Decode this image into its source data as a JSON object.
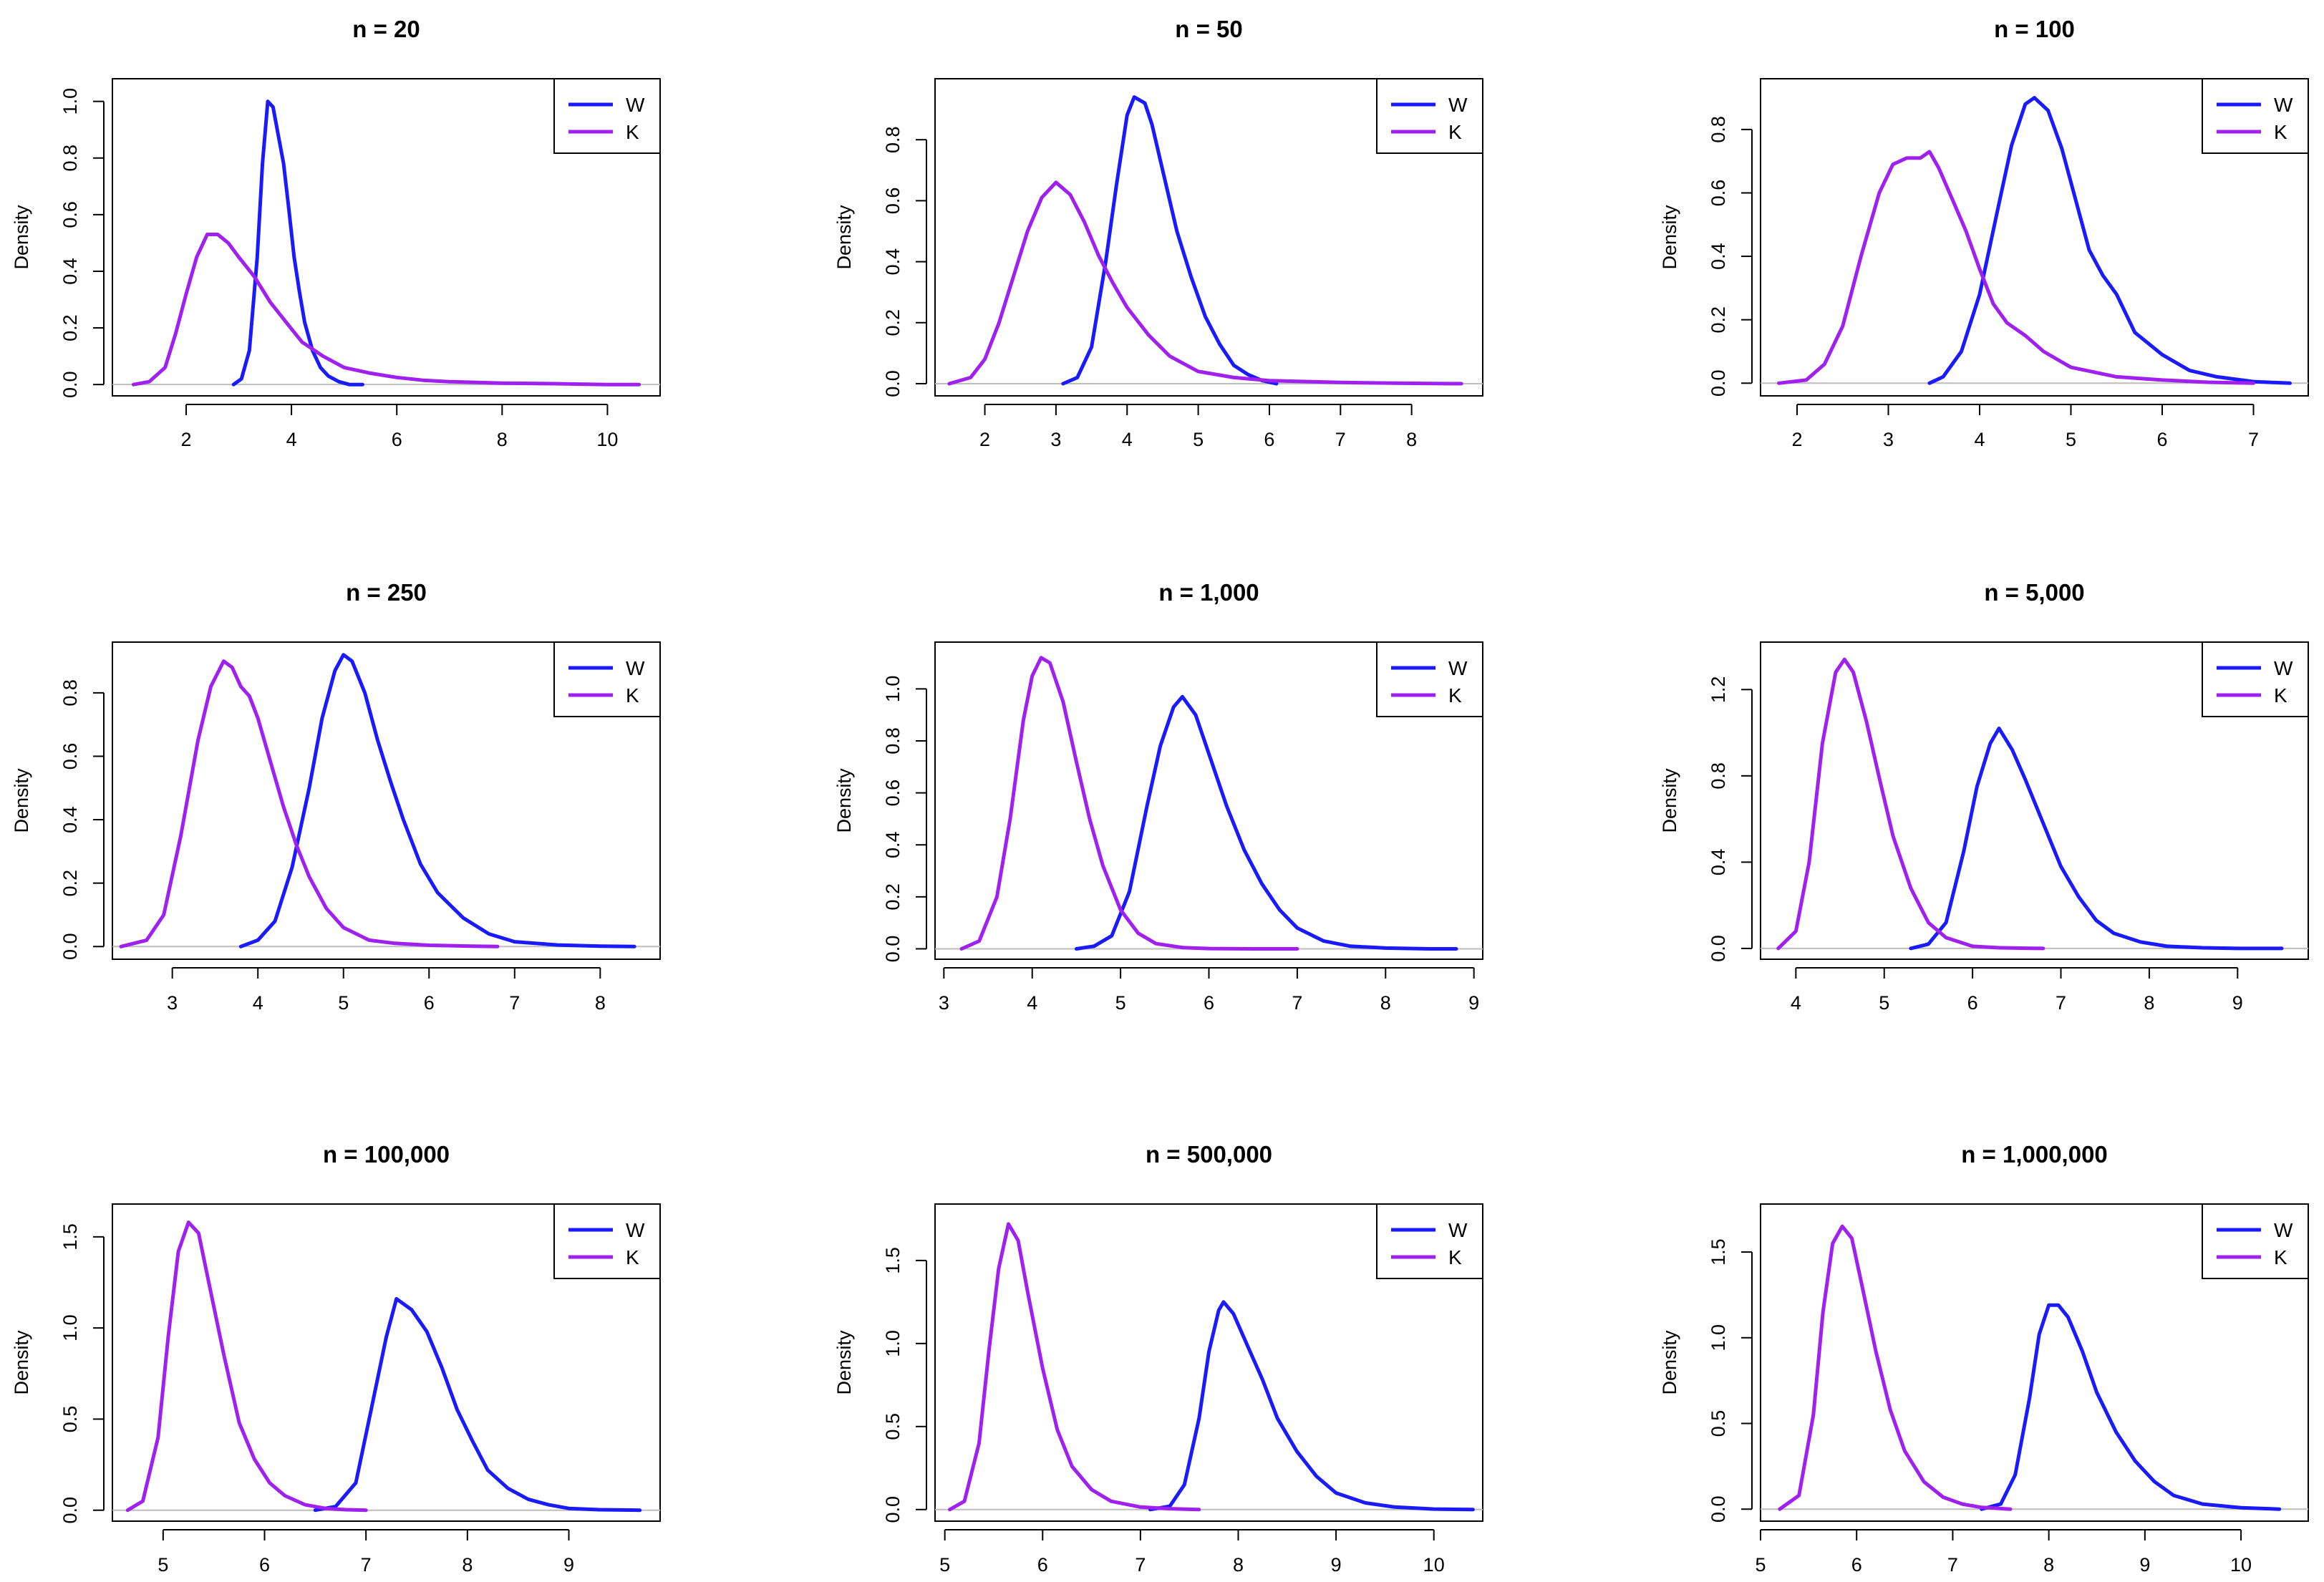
{
  "chart_data": [
    {
      "type": "line",
      "title": "n = 20",
      "xlabel": "",
      "ylabel": "Density",
      "xlim": [
        0.6,
        11.0
      ],
      "ylim": [
        -0.04,
        1.08
      ],
      "xticks": [
        2,
        4,
        6,
        8,
        10
      ],
      "yticks": [
        "0.0",
        "0.2",
        "0.4",
        "0.6",
        "0.8",
        "1.0"
      ],
      "legend": {
        "position": "top-right",
        "entries": [
          "W",
          "K"
        ]
      },
      "series": [
        {
          "name": "W",
          "color": "#1a1aff",
          "x": [
            2.9,
            3.05,
            3.2,
            3.35,
            3.45,
            3.55,
            3.65,
            3.75,
            3.85,
            3.95,
            4.05,
            4.15,
            4.25,
            4.4,
            4.55,
            4.7,
            4.9,
            5.1,
            5.35
          ],
          "y": [
            0.0,
            0.02,
            0.12,
            0.45,
            0.78,
            1.0,
            0.98,
            0.88,
            0.78,
            0.62,
            0.45,
            0.33,
            0.22,
            0.12,
            0.06,
            0.03,
            0.01,
            0.0,
            0.0
          ]
        },
        {
          "name": "K",
          "color": "#a020f0",
          "x": [
            1.0,
            1.3,
            1.6,
            1.8,
            2.0,
            2.2,
            2.4,
            2.6,
            2.8,
            3.0,
            3.3,
            3.6,
            3.9,
            4.2,
            4.6,
            5.0,
            5.5,
            6.0,
            6.5,
            7.0,
            8.0,
            9.0,
            10.0,
            10.6
          ],
          "y": [
            0.0,
            0.01,
            0.06,
            0.18,
            0.32,
            0.45,
            0.53,
            0.53,
            0.5,
            0.45,
            0.38,
            0.29,
            0.22,
            0.15,
            0.1,
            0.06,
            0.04,
            0.025,
            0.015,
            0.01,
            0.005,
            0.003,
            0.0,
            0.0
          ]
        }
      ]
    },
    {
      "type": "line",
      "title": "n = 50",
      "xlabel": "",
      "ylabel": "Density",
      "xlim": [
        1.3,
        9.0
      ],
      "ylim": [
        -0.04,
        1.0
      ],
      "xticks": [
        2,
        3,
        4,
        5,
        6,
        7,
        8
      ],
      "yticks": [
        "0.0",
        "0.2",
        "0.4",
        "0.6",
        "0.8"
      ],
      "legend": {
        "position": "top-right",
        "entries": [
          "W",
          "K"
        ]
      },
      "series": [
        {
          "name": "W",
          "color": "#1a1aff",
          "x": [
            3.1,
            3.3,
            3.5,
            3.7,
            3.85,
            4.0,
            4.1,
            4.25,
            4.35,
            4.5,
            4.7,
            4.9,
            5.1,
            5.3,
            5.5,
            5.7,
            5.9,
            6.1
          ],
          "y": [
            0.0,
            0.02,
            0.12,
            0.4,
            0.65,
            0.88,
            0.94,
            0.92,
            0.85,
            0.7,
            0.5,
            0.35,
            0.22,
            0.13,
            0.06,
            0.03,
            0.01,
            0.0
          ]
        },
        {
          "name": "K",
          "color": "#a020f0",
          "x": [
            1.5,
            1.8,
            2.0,
            2.2,
            2.4,
            2.6,
            2.8,
            3.0,
            3.2,
            3.4,
            3.6,
            3.8,
            4.0,
            4.3,
            4.6,
            5.0,
            5.5,
            6.0,
            7.0,
            8.0,
            8.7
          ],
          "y": [
            0.0,
            0.02,
            0.08,
            0.2,
            0.35,
            0.5,
            0.61,
            0.66,
            0.62,
            0.53,
            0.42,
            0.33,
            0.25,
            0.16,
            0.09,
            0.04,
            0.02,
            0.01,
            0.004,
            0.001,
            0.0
          ]
        }
      ]
    },
    {
      "type": "line",
      "title": "n = 100",
      "xlabel": "",
      "ylabel": "Density",
      "xlim": [
        1.6,
        7.6
      ],
      "ylim": [
        -0.04,
        0.96
      ],
      "xticks": [
        2,
        3,
        4,
        5,
        6,
        7
      ],
      "yticks": [
        "0.0",
        "0.2",
        "0.4",
        "0.6",
        "0.8"
      ],
      "legend": {
        "position": "top-right",
        "entries": [
          "W",
          "K"
        ]
      },
      "series": [
        {
          "name": "W",
          "color": "#1a1aff",
          "x": [
            3.45,
            3.6,
            3.8,
            4.0,
            4.2,
            4.35,
            4.5,
            4.6,
            4.75,
            4.9,
            5.05,
            5.2,
            5.35,
            5.5,
            5.7,
            6.0,
            6.3,
            6.6,
            7.0,
            7.4
          ],
          "y": [
            0.0,
            0.02,
            0.1,
            0.28,
            0.55,
            0.75,
            0.88,
            0.9,
            0.86,
            0.74,
            0.58,
            0.42,
            0.34,
            0.28,
            0.16,
            0.09,
            0.04,
            0.02,
            0.005,
            0.0
          ]
        },
        {
          "name": "K",
          "color": "#a020f0",
          "x": [
            1.8,
            2.1,
            2.3,
            2.5,
            2.7,
            2.9,
            3.05,
            3.2,
            3.35,
            3.45,
            3.55,
            3.7,
            3.85,
            4.0,
            4.15,
            4.3,
            4.5,
            4.7,
            5.0,
            5.5,
            6.0,
            6.5,
            7.0
          ],
          "y": [
            0.0,
            0.01,
            0.06,
            0.18,
            0.4,
            0.6,
            0.69,
            0.71,
            0.71,
            0.73,
            0.68,
            0.58,
            0.48,
            0.36,
            0.25,
            0.19,
            0.15,
            0.1,
            0.05,
            0.02,
            0.01,
            0.003,
            0.0
          ]
        }
      ]
    },
    {
      "type": "line",
      "title": "n = 250",
      "xlabel": "",
      "ylabel": "Density",
      "xlim": [
        2.3,
        8.7
      ],
      "ylim": [
        -0.04,
        0.96
      ],
      "xticks": [
        3,
        4,
        5,
        6,
        7,
        8
      ],
      "yticks": [
        "0.0",
        "0.2",
        "0.4",
        "0.6",
        "0.8"
      ],
      "legend": {
        "position": "top-right",
        "entries": [
          "W",
          "K"
        ]
      },
      "series": [
        {
          "name": "W",
          "color": "#1a1aff",
          "x": [
            3.8,
            4.0,
            4.2,
            4.4,
            4.6,
            4.75,
            4.9,
            5.0,
            5.1,
            5.25,
            5.4,
            5.55,
            5.7,
            5.9,
            6.1,
            6.4,
            6.7,
            7.0,
            7.5,
            8.0,
            8.4
          ],
          "y": [
            0.0,
            0.02,
            0.08,
            0.25,
            0.5,
            0.72,
            0.87,
            0.92,
            0.9,
            0.8,
            0.65,
            0.52,
            0.4,
            0.26,
            0.17,
            0.09,
            0.04,
            0.015,
            0.005,
            0.001,
            0.0
          ]
        },
        {
          "name": "K",
          "color": "#a020f0",
          "x": [
            2.4,
            2.7,
            2.9,
            3.1,
            3.3,
            3.45,
            3.6,
            3.7,
            3.8,
            3.9,
            4.0,
            4.15,
            4.3,
            4.45,
            4.6,
            4.8,
            5.0,
            5.3,
            5.6,
            6.0,
            6.5,
            6.8
          ],
          "y": [
            0.0,
            0.02,
            0.1,
            0.35,
            0.65,
            0.82,
            0.9,
            0.88,
            0.82,
            0.79,
            0.72,
            0.58,
            0.44,
            0.32,
            0.22,
            0.12,
            0.06,
            0.02,
            0.01,
            0.004,
            0.001,
            0.0
          ]
        }
      ]
    },
    {
      "type": "line",
      "title": "n = 1,000",
      "xlabel": "",
      "ylabel": "Density",
      "xlim": [
        2.9,
        9.1
      ],
      "ylim": [
        -0.04,
        1.18
      ],
      "xticks": [
        3,
        4,
        5,
        6,
        7,
        8,
        9
      ],
      "yticks": [
        "0.0",
        "0.2",
        "0.4",
        "0.6",
        "0.8",
        "1.0"
      ],
      "legend": {
        "position": "top-right",
        "entries": [
          "W",
          "K"
        ]
      },
      "series": [
        {
          "name": "W",
          "color": "#1a1aff",
          "x": [
            4.5,
            4.7,
            4.9,
            5.1,
            5.3,
            5.45,
            5.6,
            5.7,
            5.85,
            6.0,
            6.2,
            6.4,
            6.6,
            6.8,
            7.0,
            7.3,
            7.6,
            8.0,
            8.5,
            8.8
          ],
          "y": [
            0.0,
            0.01,
            0.05,
            0.22,
            0.55,
            0.78,
            0.93,
            0.97,
            0.9,
            0.75,
            0.55,
            0.38,
            0.25,
            0.15,
            0.08,
            0.03,
            0.01,
            0.003,
            0.0,
            0.0
          ]
        },
        {
          "name": "K",
          "color": "#a020f0",
          "x": [
            3.2,
            3.4,
            3.6,
            3.75,
            3.9,
            4.0,
            4.1,
            4.2,
            4.35,
            4.5,
            4.65,
            4.8,
            5.0,
            5.2,
            5.4,
            5.7,
            6.0,
            6.5,
            7.0
          ],
          "y": [
            0.0,
            0.03,
            0.2,
            0.5,
            0.88,
            1.05,
            1.12,
            1.1,
            0.95,
            0.72,
            0.5,
            0.32,
            0.15,
            0.06,
            0.02,
            0.005,
            0.001,
            0.0,
            0.0
          ]
        }
      ]
    },
    {
      "type": "line",
      "title": "n = 5,000",
      "xlabel": "",
      "ylabel": "Density",
      "xlim": [
        3.6,
        9.8
      ],
      "ylim": [
        -0.05,
        1.42
      ],
      "xticks": [
        4,
        5,
        6,
        7,
        8,
        9
      ],
      "yticks": [
        "0.0",
        "0.4",
        "0.8",
        "1.2"
      ],
      "legend": {
        "position": "top-right",
        "entries": [
          "W",
          "K"
        ]
      },
      "series": [
        {
          "name": "W",
          "color": "#1a1aff",
          "x": [
            5.3,
            5.5,
            5.7,
            5.9,
            6.05,
            6.2,
            6.3,
            6.45,
            6.6,
            6.8,
            7.0,
            7.2,
            7.4,
            7.6,
            7.9,
            8.2,
            8.6,
            9.0,
            9.5
          ],
          "y": [
            0.0,
            0.02,
            0.12,
            0.45,
            0.75,
            0.95,
            1.02,
            0.92,
            0.78,
            0.58,
            0.38,
            0.24,
            0.13,
            0.07,
            0.03,
            0.01,
            0.003,
            0.0,
            0.0
          ]
        },
        {
          "name": "K",
          "color": "#a020f0",
          "x": [
            3.8,
            4.0,
            4.15,
            4.3,
            4.45,
            4.55,
            4.65,
            4.8,
            4.95,
            5.1,
            5.3,
            5.5,
            5.7,
            6.0,
            6.3,
            6.6,
            6.8
          ],
          "y": [
            0.0,
            0.08,
            0.4,
            0.95,
            1.28,
            1.34,
            1.28,
            1.05,
            0.78,
            0.52,
            0.28,
            0.12,
            0.05,
            0.01,
            0.003,
            0.001,
            0.0
          ]
        }
      ]
    },
    {
      "type": "line",
      "title": "n = 100,000",
      "xlabel": "",
      "ylabel": "Density",
      "xlim": [
        4.5,
        9.9
      ],
      "ylim": [
        -0.06,
        1.68
      ],
      "xticks": [
        5,
        6,
        7,
        8,
        9
      ],
      "yticks": [
        "0.0",
        "0.5",
        "1.0",
        "1.5"
      ],
      "legend": {
        "position": "top-right",
        "entries": [
          "W",
          "K"
        ]
      },
      "series": [
        {
          "name": "W",
          "color": "#1a1aff",
          "x": [
            6.5,
            6.7,
            6.9,
            7.05,
            7.2,
            7.3,
            7.45,
            7.6,
            7.75,
            7.9,
            8.05,
            8.2,
            8.4,
            8.6,
            8.8,
            9.0,
            9.3,
            9.7
          ],
          "y": [
            0.0,
            0.02,
            0.15,
            0.55,
            0.95,
            1.16,
            1.1,
            0.98,
            0.78,
            0.55,
            0.38,
            0.22,
            0.12,
            0.06,
            0.03,
            0.01,
            0.003,
            0.0
          ]
        },
        {
          "name": "K",
          "color": "#a020f0",
          "x": [
            4.65,
            4.8,
            4.95,
            5.05,
            5.15,
            5.25,
            5.35,
            5.45,
            5.6,
            5.75,
            5.9,
            6.05,
            6.2,
            6.4,
            6.6,
            6.8,
            7.0
          ],
          "y": [
            0.0,
            0.05,
            0.4,
            0.95,
            1.42,
            1.58,
            1.52,
            1.25,
            0.85,
            0.48,
            0.28,
            0.15,
            0.08,
            0.03,
            0.01,
            0.003,
            0.0
          ]
        }
      ]
    },
    {
      "type": "line",
      "title": "n = 500,000",
      "xlabel": "",
      "ylabel": "Density",
      "xlim": [
        4.9,
        10.5
      ],
      "ylim": [
        -0.07,
        1.84
      ],
      "xticks": [
        5,
        6,
        7,
        8,
        9,
        10
      ],
      "yticks": [
        "0.0",
        "0.5",
        "1.0",
        "1.5"
      ],
      "legend": {
        "position": "top-right",
        "entries": [
          "W",
          "K"
        ]
      },
      "series": [
        {
          "name": "W",
          "color": "#1a1aff",
          "x": [
            7.1,
            7.3,
            7.45,
            7.6,
            7.7,
            7.8,
            7.85,
            7.95,
            8.1,
            8.25,
            8.4,
            8.6,
            8.8,
            9.0,
            9.3,
            9.6,
            10.0,
            10.4
          ],
          "y": [
            0.0,
            0.02,
            0.15,
            0.55,
            0.95,
            1.2,
            1.25,
            1.18,
            0.98,
            0.78,
            0.55,
            0.35,
            0.2,
            0.1,
            0.04,
            0.015,
            0.003,
            0.0
          ]
        },
        {
          "name": "K",
          "color": "#a020f0",
          "x": [
            5.05,
            5.2,
            5.35,
            5.45,
            5.55,
            5.65,
            5.75,
            5.85,
            6.0,
            6.15,
            6.3,
            6.5,
            6.7,
            7.0,
            7.3,
            7.6
          ],
          "y": [
            0.0,
            0.05,
            0.4,
            0.95,
            1.45,
            1.72,
            1.62,
            1.3,
            0.85,
            0.48,
            0.26,
            0.12,
            0.05,
            0.015,
            0.005,
            0.0
          ]
        }
      ]
    },
    {
      "type": "line",
      "title": "n = 1,000,000",
      "xlabel": "",
      "ylabel": "Density",
      "xlim": [
        5.0,
        10.7
      ],
      "ylim": [
        -0.07,
        1.78
      ],
      "xticks": [
        5,
        6,
        7,
        8,
        9,
        10
      ],
      "yticks": [
        "0.0",
        "0.5",
        "1.0",
        "1.5"
      ],
      "legend": {
        "position": "top-right",
        "entries": [
          "W",
          "K"
        ]
      },
      "series": [
        {
          "name": "W",
          "color": "#1a1aff",
          "x": [
            7.3,
            7.5,
            7.65,
            7.8,
            7.9,
            8.0,
            8.1,
            8.2,
            8.35,
            8.5,
            8.7,
            8.9,
            9.1,
            9.3,
            9.6,
            10.0,
            10.4
          ],
          "y": [
            0.0,
            0.03,
            0.2,
            0.65,
            1.02,
            1.19,
            1.19,
            1.12,
            0.92,
            0.68,
            0.45,
            0.28,
            0.16,
            0.08,
            0.03,
            0.008,
            0.0
          ]
        },
        {
          "name": "K",
          "color": "#a020f0",
          "x": [
            5.2,
            5.4,
            5.55,
            5.65,
            5.75,
            5.85,
            5.95,
            6.05,
            6.2,
            6.35,
            6.5,
            6.7,
            6.9,
            7.1,
            7.3,
            7.6
          ],
          "y": [
            0.0,
            0.08,
            0.55,
            1.15,
            1.55,
            1.65,
            1.58,
            1.32,
            0.92,
            0.58,
            0.34,
            0.16,
            0.07,
            0.03,
            0.01,
            0.0
          ]
        }
      ]
    }
  ]
}
